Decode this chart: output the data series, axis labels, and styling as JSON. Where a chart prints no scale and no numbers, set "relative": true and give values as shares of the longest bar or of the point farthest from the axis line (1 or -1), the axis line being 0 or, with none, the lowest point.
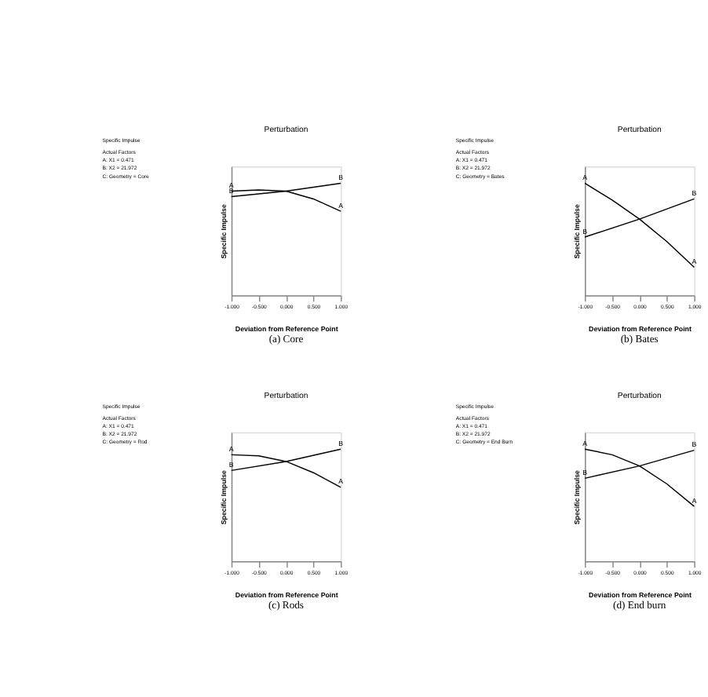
{
  "chart_data": [
    {
      "type": "line",
      "title": "Perturbation",
      "xlabel": "Deviation from Reference Point",
      "ylabel": "Specific Impulse",
      "relative": true,
      "xlim": [
        -1,
        1
      ],
      "xticks": [
        {
          "value": -1,
          "label": "-1.000"
        },
        {
          "value": -0.5,
          "label": "-0.500"
        },
        {
          "value": 0,
          "label": "0.000"
        },
        {
          "value": 0.5,
          "label": "0.500"
        },
        {
          "value": 1,
          "label": "1.000"
        }
      ],
      "grid": false,
      "legend": false,
      "marker": "none",
      "annotations": [
        "Specific Impulse",
        "Actual Factors",
        "A: X1 = 0.471",
        "B: X2 = 21.972",
        "C: Geometry = Core",
        "(a)  Core"
      ],
      "series": [
        {
          "name": "A",
          "color": "#000000",
          "x": [
            -1,
            -0.5,
            0,
            0.5,
            1
          ],
          "values": [
            0.93,
            0.94,
            0.93,
            0.86,
            0.75
          ]
        },
        {
          "name": "B",
          "color": "#000000",
          "x": [
            -1,
            0,
            1
          ],
          "values": [
            0.88,
            0.93,
            1.0
          ]
        }
      ]
    },
    {
      "type": "line",
      "title": "Perturbation",
      "xlabel": "Deviation from Reference Point",
      "ylabel": "Specific Impulse",
      "relative": true,
      "xlim": [
        -1,
        1
      ],
      "xticks": [
        {
          "value": -1,
          "label": "-1.000"
        },
        {
          "value": -0.5,
          "label": "-0.500"
        },
        {
          "value": 0,
          "label": "0.000"
        },
        {
          "value": 0.5,
          "label": "0.500"
        },
        {
          "value": 1,
          "label": "1.000"
        }
      ],
      "grid": false,
      "legend": false,
      "marker": "none",
      "annotations": [
        "Specific Impulse",
        "Actual Factors",
        "A: X1 = 0.471",
        "B: X2 = 21.972",
        "C: Geometry = Bates",
        "(b)  Bates"
      ],
      "series": [
        {
          "name": "A",
          "color": "#000000",
          "x": [
            -1,
            -0.5,
            0,
            0.5,
            1
          ],
          "values": [
            1.0,
            0.85,
            0.68,
            0.48,
            0.25
          ]
        },
        {
          "name": "B",
          "color": "#000000",
          "x": [
            -1,
            0,
            1
          ],
          "values": [
            0.52,
            0.68,
            0.86
          ]
        }
      ]
    },
    {
      "type": "line",
      "title": "Perturbation",
      "xlabel": "Deviation from Reference Point",
      "ylabel": "Specific Impulse",
      "relative": true,
      "xlim": [
        -1,
        1
      ],
      "xticks": [
        {
          "value": -1,
          "label": "-1.000"
        },
        {
          "value": -0.5,
          "label": "-0.500"
        },
        {
          "value": 0,
          "label": "0.000"
        },
        {
          "value": 0.5,
          "label": "0.500"
        },
        {
          "value": 1,
          "label": "1.000"
        }
      ],
      "grid": false,
      "legend": false,
      "marker": "none",
      "annotations": [
        "Specific Impulse",
        "Actual Factors",
        "A: X1 = 0.471",
        "B: X2 = 21.972",
        "C: Geometry = Rod",
        "(c) Rods"
      ],
      "series": [
        {
          "name": "A",
          "color": "#000000",
          "x": [
            -1,
            -0.5,
            0,
            0.5,
            1
          ],
          "values": [
            0.95,
            0.94,
            0.89,
            0.79,
            0.66
          ]
        },
        {
          "name": "B",
          "color": "#000000",
          "x": [
            -1,
            0,
            1
          ],
          "values": [
            0.81,
            0.89,
            1.0
          ]
        }
      ]
    },
    {
      "type": "line",
      "title": "Perturbation",
      "xlabel": "Deviation from Reference Point",
      "ylabel": "Specific Impulse",
      "relative": true,
      "xlim": [
        -1,
        1
      ],
      "xticks": [
        {
          "value": -1,
          "label": "-1.000"
        },
        {
          "value": -0.5,
          "label": "-0.500"
        },
        {
          "value": 0,
          "label": "0.000"
        },
        {
          "value": 0.5,
          "label": "0.500"
        },
        {
          "value": 1,
          "label": "1.000"
        }
      ],
      "grid": false,
      "legend": false,
      "marker": "none",
      "annotations": [
        "Specific Impulse",
        "Actual Factors",
        "A: X1 = 0.471",
        "B: X2 = 21.972",
        "C: Geometry = End Burn",
        "(d) End burn"
      ],
      "series": [
        {
          "name": "A",
          "color": "#000000",
          "x": [
            -1,
            -0.5,
            0,
            0.5,
            1
          ],
          "values": [
            1.0,
            0.95,
            0.85,
            0.69,
            0.49
          ]
        },
        {
          "name": "B",
          "color": "#000000",
          "x": [
            -1,
            0,
            1
          ],
          "values": [
            0.74,
            0.85,
            0.99
          ]
        }
      ]
    }
  ]
}
